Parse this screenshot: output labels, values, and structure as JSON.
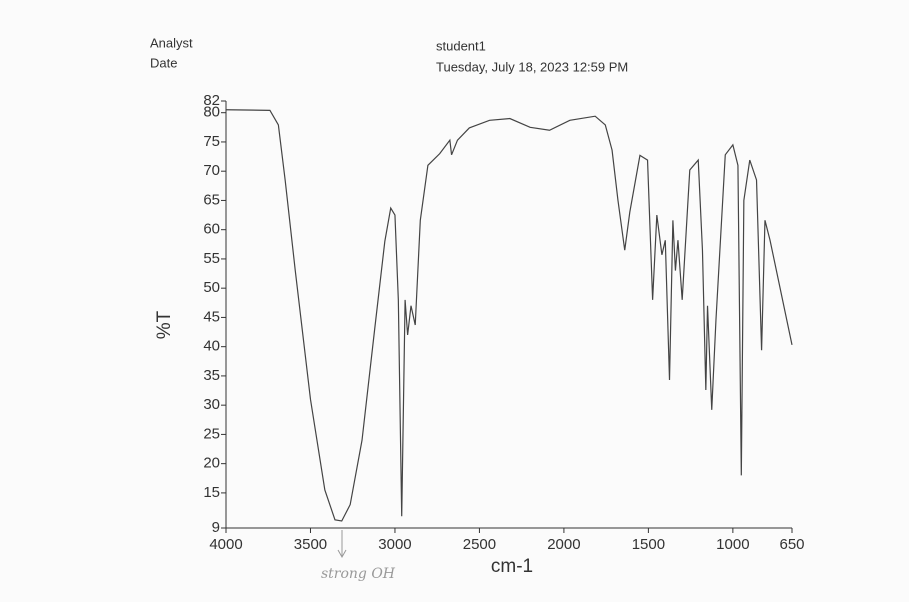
{
  "header": {
    "analyst_label": "Analyst",
    "date_label": "Date",
    "analyst": "student1",
    "date": "Tuesday, July 18, 2023 12:59 PM"
  },
  "chart_data": {
    "type": "line",
    "xlabel": "cm-1",
    "ylabel": "%T",
    "annotation": "strong OH",
    "color": "#444444",
    "x": [
      4000,
      3740,
      3690,
      3650,
      3590,
      3500,
      3415,
      3355,
      3315,
      3265,
      3195,
      3120,
      3060,
      3025,
      3000,
      2980,
      2960,
      2940,
      2925,
      2905,
      2880,
      2850,
      2805,
      2735,
      2675,
      2665,
      2630,
      2560,
      2440,
      2320,
      2200,
      2085,
      1965,
      1815,
      1755,
      1715,
      1680,
      1640,
      1610,
      1550,
      1505,
      1475,
      1450,
      1420,
      1400,
      1375,
      1355,
      1340,
      1325,
      1300,
      1255,
      1205,
      1180,
      1160,
      1150,
      1125,
      1100,
      1045,
      1000,
      970,
      950,
      935,
      900,
      860,
      830,
      810,
      780,
      650
    ],
    "series": [
      {
        "name": "%T",
        "color": "#444444",
        "values": [
          80.5,
          80.4,
          77.9,
          68.5,
          53,
          31,
          15.5,
          10.4,
          10.2,
          13,
          24,
          43,
          58,
          63.7,
          62.5,
          48,
          11,
          48,
          42,
          47,
          43.7,
          61.6,
          71,
          73,
          75.3,
          72.8,
          75.3,
          77.4,
          78.7,
          79,
          77.5,
          77,
          78.7,
          79.4,
          77.9,
          73.6,
          65,
          56.5,
          63,
          72.7,
          71.9,
          48,
          62.5,
          55.7,
          58.2,
          34.3,
          61.6,
          53,
          58.2,
          48,
          70.2,
          71.9,
          56.5,
          32.6,
          47,
          29.2,
          44.6,
          72.8,
          74.5,
          71,
          18,
          65,
          71.9,
          68.5,
          39.4,
          61.6,
          58.2,
          40.3
        ]
      }
    ],
    "xlim": [
      4000,
      650
    ],
    "xticks": [
      4000,
      3500,
      3000,
      2500,
      2000,
      1500,
      1000,
      650
    ],
    "ylim": [
      9,
      82
    ],
    "yticks": [
      9,
      15,
      20,
      25,
      30,
      35,
      40,
      45,
      50,
      55,
      60,
      65,
      70,
      75,
      80,
      82
    ]
  }
}
